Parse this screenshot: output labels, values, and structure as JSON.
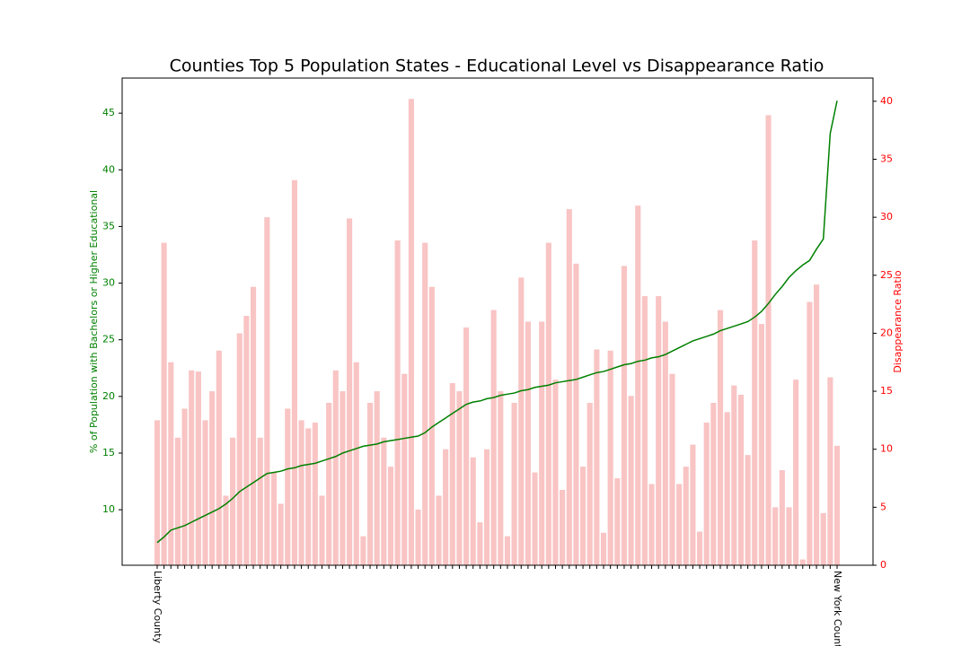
{
  "chart_data": {
    "type": "bar-line",
    "title": "Counties Top 5 Population States - Educational Level vs Disappearance Ratio",
    "ylabel": "% of Population with Bachelors or Higher Educational",
    "y2label": "Disappearance Ratio",
    "categories": [
      "Liberty County",
      null,
      null,
      null,
      null,
      null,
      null,
      null,
      null,
      null,
      null,
      null,
      null,
      null,
      null,
      null,
      null,
      null,
      null,
      null,
      null,
      null,
      null,
      null,
      null,
      null,
      null,
      null,
      null,
      null,
      null,
      null,
      null,
      null,
      null,
      null,
      null,
      null,
      null,
      null,
      null,
      null,
      null,
      null,
      null,
      null,
      null,
      null,
      null,
      null,
      null,
      null,
      null,
      null,
      null,
      null,
      null,
      null,
      null,
      null,
      null,
      null,
      null,
      null,
      null,
      null,
      null,
      null,
      null,
      null,
      null,
      null,
      null,
      null,
      null,
      null,
      null,
      null,
      null,
      null,
      null,
      null,
      null,
      null,
      null,
      null,
      null,
      null,
      null,
      null,
      null,
      null,
      null,
      null,
      null,
      null,
      null,
      null,
      null,
      "New York County"
    ],
    "series": [
      {
        "name": "Disappearance Ratio",
        "axis": "y2",
        "kind": "bar",
        "color": "#f9c4c4",
        "values": [
          12.5,
          27.8,
          17.5,
          11,
          13.5,
          16.8,
          16.7,
          12.5,
          15,
          18.5,
          6,
          11,
          20,
          21.5,
          24,
          11,
          30,
          8,
          5.3,
          13.5,
          33.2,
          12.5,
          11.8,
          12.3,
          6,
          14,
          16.8,
          15,
          29.9,
          17.5,
          2.5,
          14,
          15,
          11,
          8.5,
          28,
          16.5,
          40.2,
          4.8,
          27.8,
          24,
          6,
          10,
          15.7,
          15,
          20.5,
          9.3,
          3.7,
          10,
          22,
          15,
          2.5,
          14,
          24.8,
          21,
          8,
          21,
          27.8,
          16,
          6.5,
          30.7,
          26,
          8.5,
          14,
          18.6,
          2.8,
          18.5,
          7.5,
          25.8,
          14.6,
          31,
          23.2,
          7,
          23.2,
          21,
          16.5,
          7,
          8.5,
          10.4,
          2.9,
          12.3,
          14,
          22,
          13.2,
          15.5,
          14.7,
          9.5,
          28,
          20.8,
          38.8,
          5,
          8.2,
          5,
          16,
          0.5,
          22.7,
          24.2,
          4.5,
          16.2,
          10.3
        ]
      },
      {
        "name": "% of Population with Bachelors or Higher Educational",
        "axis": "y",
        "kind": "line",
        "color": "#008000",
        "values": [
          7.1,
          7.6,
          8.2,
          8.4,
          8.6,
          8.9,
          9.2,
          9.5,
          9.8,
          10.1,
          10.5,
          11.0,
          11.6,
          12.0,
          12.4,
          12.8,
          13.2,
          13.3,
          13.4,
          13.6,
          13.7,
          13.9,
          14.0,
          14.1,
          14.3,
          14.5,
          14.7,
          15.0,
          15.2,
          15.4,
          15.6,
          15.7,
          15.8,
          16.0,
          16.1,
          16.2,
          16.3,
          16.4,
          16.5,
          16.8,
          17.3,
          17.7,
          18.1,
          18.5,
          18.9,
          19.3,
          19.5,
          19.6,
          19.8,
          19.9,
          20.1,
          20.2,
          20.3,
          20.5,
          20.6,
          20.8,
          20.9,
          21.0,
          21.2,
          21.3,
          21.4,
          21.5,
          21.7,
          21.9,
          22.1,
          22.2,
          22.4,
          22.6,
          22.8,
          22.9,
          23.1,
          23.2,
          23.4,
          23.5,
          23.7,
          24.0,
          24.3,
          24.6,
          24.9,
          25.1,
          25.3,
          25.5,
          25.8,
          26.0,
          26.2,
          26.4,
          26.6,
          27.0,
          27.5,
          28.2,
          29.0,
          29.7,
          30.5,
          31.1,
          31.6,
          32.0,
          33.0,
          33.9,
          43.2,
          46.1
        ]
      }
    ],
    "ylim": [
      5.1,
      48.1
    ],
    "yticks": [
      10,
      15,
      20,
      25,
      30,
      35,
      40,
      45
    ],
    "ycolor": "#008000",
    "y2lim": [
      0,
      42
    ],
    "y2ticks": [
      0,
      5,
      10,
      15,
      20,
      25,
      30,
      35,
      40
    ],
    "y2color": "#ff0000"
  }
}
